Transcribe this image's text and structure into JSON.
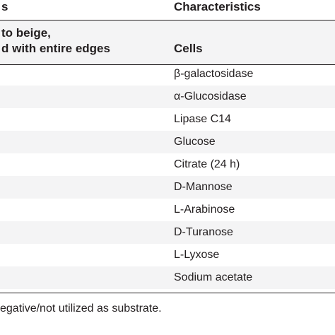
{
  "table": {
    "header": {
      "left_top": "s",
      "right_top": "Characteristics",
      "left_line1": "to beige,",
      "left_line2": "d with entire edges",
      "right_sub": "Cells"
    },
    "rows": [
      "β-galactosidase",
      "α-Glucosidase",
      "Lipase C14",
      "Glucose",
      "Citrate (24 h)",
      "D-Mannose",
      "L-Arabinose",
      "D-Turanose",
      "L-Lyxose",
      "Sodium acetate"
    ]
  },
  "footnote": "egative/not utilized as substrate."
}
